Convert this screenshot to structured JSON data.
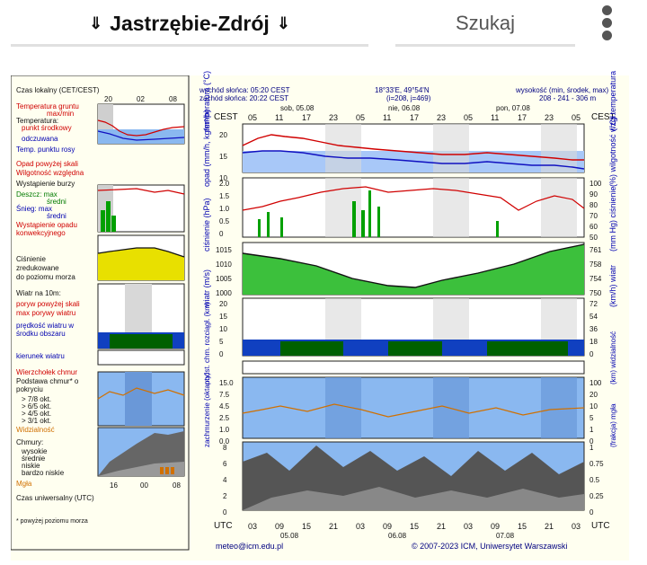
{
  "header": {
    "location": "Jastrzębie-Zdrój",
    "arrow_left": "⇓",
    "arrow_right": "⇓",
    "search_label": "Szukaj"
  },
  "meteogram": {
    "sunrise": "wschód słońca: 05:20 CEST",
    "sunset": "zachód słońca: 20:22 CEST",
    "coords": "18°33'E, 49°54'N",
    "grid": "(i=208, j=469)",
    "elevation_title": "wysokość (min, środek, max)",
    "elevation_values": "208 - 241 - 306 m",
    "tz_left": "CEST",
    "tz_right": "CEST",
    "utc": "UTC",
    "days": [
      "sob, 05.08",
      "nie, 06.08",
      "pon, 07.08"
    ],
    "days_bottom": [
      "05.08",
      "06.08",
      "07.08"
    ],
    "hours_top": [
      "05",
      "11",
      "17",
      "23",
      "05",
      "11",
      "17",
      "23",
      "05",
      "11",
      "17",
      "23",
      "05"
    ],
    "hours_bottom": [
      "03",
      "09",
      "15",
      "21",
      "03",
      "09",
      "15",
      "21",
      "03",
      "09",
      "15",
      "21",
      "03"
    ],
    "footer_left": "meteo@icm.edu.pl",
    "footer_right": "© 2007-2023 ICM, Uniwersytet Warszawski",
    "panels": {
      "temp": {
        "left_label": "temperatura (°C)",
        "right_label": "(°C) temperatura",
        "ticks": [
          "20",
          "15",
          "10"
        ]
      },
      "precip": {
        "left_label": "opad (mm/h, kg/m²/h)",
        "right_label": "(%) wilgotność wzgl.",
        "ticks_left": [
          "2.0",
          "1.5",
          "1.0",
          "0.5",
          "0"
        ],
        "ticks_right": [
          "100",
          "90",
          "80",
          "70",
          "60",
          "50"
        ]
      },
      "pressure": {
        "left_label": "ciśnienie (hPa)",
        "right_label": "(mm Hg) ciśnienie",
        "ticks_left": [
          "1015",
          "1010",
          "1005",
          "1000"
        ],
        "ticks_right": [
          "761",
          "758",
          "754",
          "750"
        ]
      },
      "wind": {
        "left_label": "wiatr (m/s)",
        "right_label": "(km/h) wiatr",
        "ticks_left": [
          "20",
          "15",
          "10",
          "5",
          "0"
        ],
        "ticks_right": [
          "72",
          "54",
          "36",
          "18",
          "0"
        ]
      },
      "visibility": {
        "left_label": "podst. chm. rozciągł. (km)",
        "right_label": "(km) widzialność",
        "ticks_left": [
          "15.0",
          "7.5",
          "4.5",
          "2.5",
          "1.0",
          "0.0"
        ],
        "ticks_right": [
          "100",
          "20",
          "10",
          "5",
          "1",
          "0"
        ]
      },
      "clouds": {
        "left_label": "zachmurzenie (oktanty)",
        "right_label": "(frakcja) mgła",
        "ticks_left": [
          "8",
          "6",
          "4",
          "2",
          "0"
        ],
        "ticks_right": [
          "1",
          "0.75",
          "0.5",
          "0.25",
          "0"
        ]
      }
    }
  },
  "legend": {
    "title_time": "Czas lokalny (CET/CEST)",
    "hours": [
      "20",
      "02",
      "08"
    ],
    "temp": [
      "Temperatura gruntu",
      "max/min",
      "Temperatura:",
      "punkt środkowy",
      "odczuwana",
      "Temp. punktu rosy"
    ],
    "precip": [
      "Opad powyżej skali",
      "Wilgotność względna",
      "Wystąpienie burzy",
      "Deszcz: max",
      "średni",
      "Śnieg: max",
      "średni",
      "Wystąpienie opadu konwekcyjnego"
    ],
    "pressure": [
      "Ciśnienie",
      "zredukowane",
      "do poziomu morza"
    ],
    "wind": [
      "Wiatr na 10m:",
      "poryw powyżej skali",
      "max porywy wiatru",
      "prędkość wiatru w środku obszaru",
      "kierunek wiatru"
    ],
    "cloudbase": [
      "Wierzchołek chmur",
      "Podstawa chmur* o pokryciu",
      "> 7/8 okt.",
      "> 6/5 okt.",
      "> 4/5 okt.",
      "> 3/1 okt.",
      "Widzialność"
    ],
    "clouds": [
      "Chmury:",
      "wysokie",
      "średnie",
      "niskie",
      "bardzo niskie",
      "Mgła"
    ],
    "utc_label": "Czas uniwersalny (UTC)",
    "utc_hours": [
      "16",
      "00",
      "08"
    ],
    "footnote": "* powyżej poziomu morza"
  },
  "colors": {
    "temp_red": "#d00000",
    "temp_blue": "#1010c0",
    "rain_green": "#00a000",
    "pressure_fill": "#3cc03c",
    "wind_blue": "#0040c0",
    "cloud_base": "#4a7aff",
    "night_gray": "#bdbdbd"
  }
}
